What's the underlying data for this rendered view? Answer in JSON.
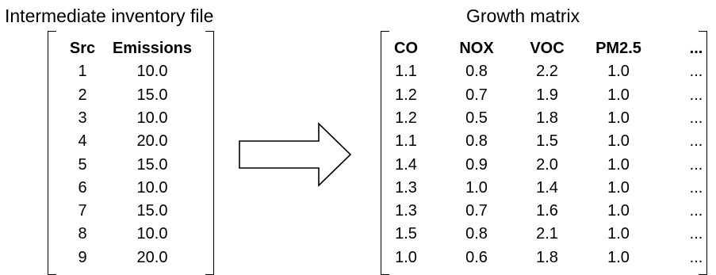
{
  "inventory": {
    "title": "Intermediate inventory file",
    "headers": [
      "Src",
      "Emissions"
    ],
    "rows": [
      [
        "1",
        "10.0"
      ],
      [
        "2",
        "15.0"
      ],
      [
        "3",
        "10.0"
      ],
      [
        "4",
        "20.0"
      ],
      [
        "5",
        "15.0"
      ],
      [
        "6",
        "10.0"
      ],
      [
        "7",
        "15.0"
      ],
      [
        "8",
        "10.0"
      ],
      [
        "9",
        "20.0"
      ]
    ]
  },
  "growth": {
    "title": "Growth matrix",
    "headers": [
      "CO",
      "NOX",
      "VOC",
      "PM2.5",
      "..."
    ],
    "rows": [
      [
        "1.1",
        "0.8",
        "2.2",
        "1.0",
        "..."
      ],
      [
        "1.2",
        "0.7",
        "1.9",
        "1.0",
        "..."
      ],
      [
        "1.2",
        "0.5",
        "1.8",
        "1.0",
        "..."
      ],
      [
        "1.1",
        "0.8",
        "1.5",
        "1.0",
        "..."
      ],
      [
        "1.4",
        "0.9",
        "2.0",
        "1.0",
        "..."
      ],
      [
        "1.3",
        "1.0",
        "1.4",
        "1.0",
        "..."
      ],
      [
        "1.3",
        "0.7",
        "1.6",
        "1.0",
        "..."
      ],
      [
        "1.5",
        "0.8",
        "2.1",
        "1.0",
        "..."
      ],
      [
        "1.0",
        "0.6",
        "1.8",
        "1.0",
        "..."
      ]
    ]
  }
}
